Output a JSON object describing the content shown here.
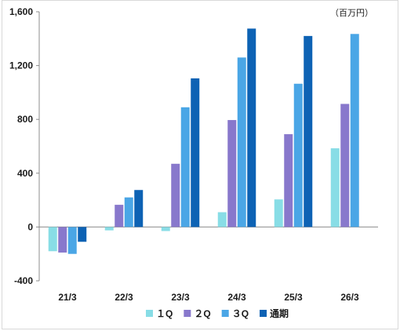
{
  "chart_data": {
    "type": "bar",
    "unit_label": "（百万円）",
    "categories": [
      "21/3",
      "22/3",
      "23/3",
      "24/3",
      "25/3",
      "26/3"
    ],
    "series": [
      {
        "name": "１Q",
        "color": "#88DDE6",
        "values": [
          -180,
          -25,
          -30,
          110,
          205,
          585
        ]
      },
      {
        "name": "２Q",
        "color": "#8878CC",
        "values": [
          -190,
          165,
          470,
          795,
          690,
          915
        ]
      },
      {
        "name": "３Q",
        "color": "#4AA6E6",
        "values": [
          -200,
          220,
          890,
          1260,
          1065,
          1435
        ]
      },
      {
        "name": "通期",
        "color": "#0D62B4",
        "values": [
          -110,
          275,
          1105,
          1475,
          1420,
          null
        ]
      }
    ],
    "ylim": [
      -400,
      1600
    ],
    "yticks": [
      -400,
      0,
      400,
      800,
      1200,
      1600
    ],
    "ytick_labels": [
      "-400",
      "0",
      "400",
      "800",
      "1,200",
      "1,600"
    ],
    "grid": false,
    "legend_position": "bottom"
  }
}
